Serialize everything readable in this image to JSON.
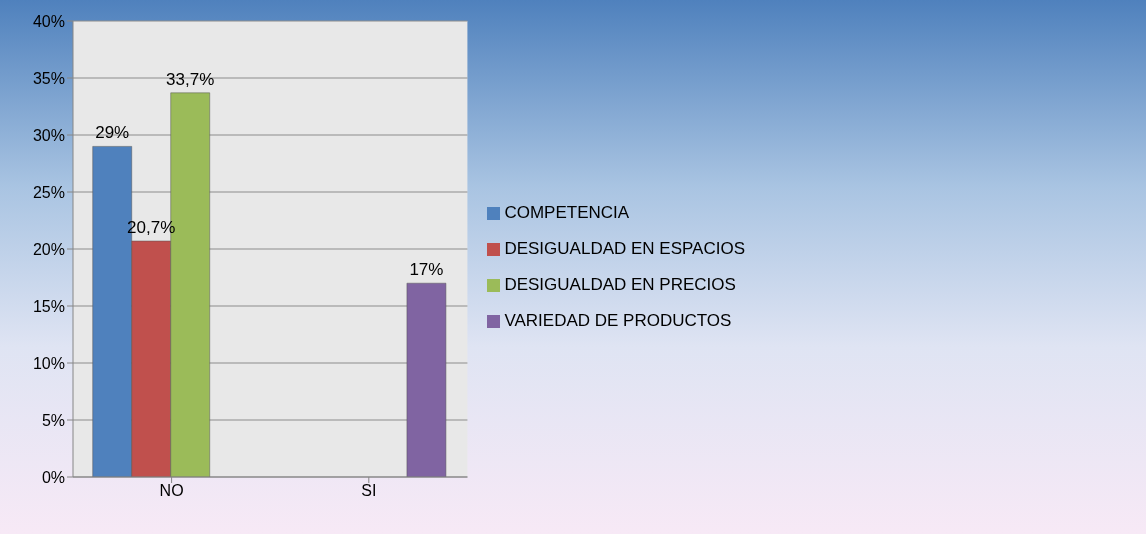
{
  "chart_data": {
    "type": "bar",
    "categories": [
      "NO",
      "SI"
    ],
    "series": [
      {
        "name": "COMPETENCIA",
        "color": "#4f81bd",
        "values": [
          29,
          null
        ],
        "value_labels": [
          "29%",
          null
        ]
      },
      {
        "name": "DESIGUALDAD EN ESPACIOS",
        "color": "#c0504d",
        "values": [
          20.7,
          null
        ],
        "value_labels": [
          "20,7%",
          null
        ]
      },
      {
        "name": "DESIGUALDAD EN PRECIOS",
        "color": "#9bbb59",
        "values": [
          33.7,
          null
        ],
        "value_labels": [
          "33,7%",
          null
        ]
      },
      {
        "name": "VARIEDAD DE PRODUCTOS",
        "color": "#8064a2",
        "values": [
          null,
          17
        ],
        "value_labels": [
          null,
          "17%"
        ]
      }
    ],
    "ylim": [
      0,
      40
    ],
    "yticks": [
      {
        "value": 0,
        "label": "0%"
      },
      {
        "value": 5,
        "label": "5%"
      },
      {
        "value": 10,
        "label": "10%"
      },
      {
        "value": 15,
        "label": "15%"
      },
      {
        "value": 20,
        "label": "20%"
      },
      {
        "value": 25,
        "label": "25%"
      },
      {
        "value": 30,
        "label": "30%"
      },
      {
        "value": 35,
        "label": "35%"
      },
      {
        "value": 40,
        "label": "40%"
      }
    ],
    "grid": "y",
    "legend": "right"
  }
}
